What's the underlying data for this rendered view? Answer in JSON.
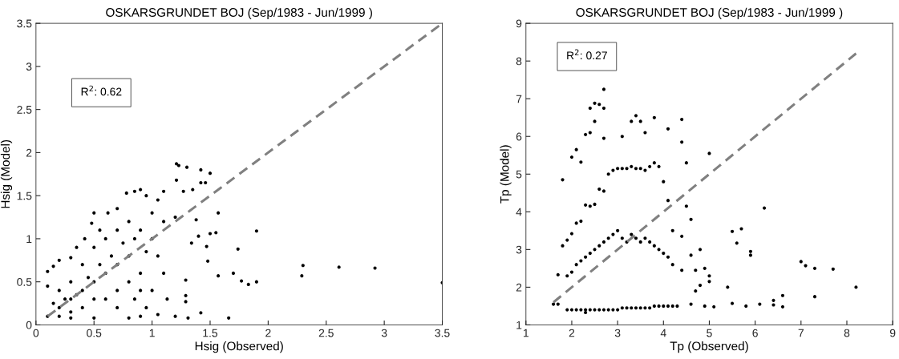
{
  "chart_data": [
    {
      "type": "scatter",
      "title": "OSKARSGRUNDET BOJ (Sep/1983 - Jun/1999 )",
      "xlabel": "Hsig (Observed)",
      "ylabel": "Hsig (Model)",
      "annotations": [
        "R$^{2}$: 0.62"
      ],
      "xlim": [
        0,
        3.5
      ],
      "ylim": [
        0,
        3.5
      ],
      "xticks": [
        0,
        0.5,
        1,
        1.5,
        2,
        2.5,
        3,
        3.5
      ],
      "yticks": [
        0,
        0.5,
        1,
        1.5,
        2,
        2.5,
        3,
        3.5
      ],
      "grid": false,
      "legend": false,
      "series": [
        {
          "marker": "circle",
          "color": "#000000",
          "x": [
            3.5,
            2.92,
            2.61,
            2.3,
            2.29,
            1.9,
            1.9,
            1.83,
            1.77,
            1.7,
            1.74,
            1.66,
            1.57,
            1.57,
            1.55,
            1.5,
            1.48,
            1.42,
            1.38,
            1.5,
            1.42,
            1.3,
            1.21,
            1.23,
            1.21,
            1.42,
            1.46,
            1.27,
            1.35,
            1.29,
            1.29,
            1.29,
            1.31,
            1.13,
            1.34,
            1.4,
            1.47,
            0.1,
            0.1,
            0.1,
            0.15,
            0.2,
            0.3,
            0.35,
            0.42,
            0.48,
            0.5,
            0.55,
            0.62,
            0.7,
            0.78,
            0.85,
            0.9,
            0.95,
            1.05,
            1.1,
            1.0,
            1.1,
            1.2,
            1.0,
            1.05,
            1.1,
            1.0,
            0.95,
            0.9,
            0.8,
            0.5,
            0.3,
            0.2,
            1.2,
            1.05,
            0.2,
            0.3,
            0.4,
            0.5,
            0.6,
            0.7,
            0.8,
            0.3,
            0.4,
            0.5,
            0.6,
            0.7,
            0.8,
            0.9,
            0.5,
            0.6,
            0.7,
            0.8,
            0.9,
            0.2,
            0.3,
            0.4,
            0.7,
            0.85,
            0.65,
            0.75,
            0.55,
            0.45,
            0.35,
            0.25,
            0.15,
            0.85,
            0.95,
            0.9
          ],
          "values": [
            0.49,
            0.66,
            0.67,
            0.69,
            0.57,
            1.09,
            0.5,
            0.47,
            0.51,
            0.6,
            0.88,
            0.08,
            0.57,
            1.3,
            1.07,
            1.06,
            0.74,
            0.14,
            1.22,
            1.76,
            1.8,
            1.83,
            1.87,
            1.85,
            1.68,
            1.65,
            1.65,
            1.55,
            1.57,
            0.52,
            0.34,
            0.27,
            0.08,
            0.3,
            0.95,
            1.03,
            0.91,
            0.1,
            0.45,
            0.62,
            0.68,
            0.75,
            0.78,
            0.9,
            1.0,
            1.18,
            1.3,
            1.1,
            1.3,
            1.35,
            1.53,
            1.55,
            1.57,
            1.5,
            1.45,
            1.55,
            1.3,
            1.2,
            1.25,
            1.0,
            0.8,
            0.6,
            0.4,
            0.2,
            0.1,
            0.08,
            0.08,
            0.08,
            0.1,
            0.1,
            0.12,
            0.2,
            0.3,
            0.4,
            0.5,
            0.6,
            0.7,
            0.8,
            0.5,
            0.7,
            0.9,
            1.0,
            1.1,
            1.2,
            1.1,
            0.3,
            0.3,
            0.4,
            0.5,
            0.6,
            0.4,
            0.15,
            0.2,
            0.2,
            0.3,
            0.8,
            0.95,
            0.7,
            0.55,
            0.35,
            0.3,
            0.25,
            1.0,
            0.85,
            0.4
          ]
        },
        {
          "type": "line",
          "marker": "none",
          "color": "#808080",
          "line_style": "dashed",
          "x": [
            0.1,
            3.5
          ],
          "values": [
            0.1,
            3.5
          ]
        }
      ]
    },
    {
      "type": "scatter",
      "title": "OSKARSGRUNDET BOJ (Sep/1983 - Jun/1999 )",
      "xlabel": "Tp (Observed)",
      "ylabel": "Tp (Model)",
      "annotations": [
        "R$^{2}$: 0.27"
      ],
      "xlim": [
        1,
        9
      ],
      "ylim": [
        1,
        9
      ],
      "xticks": [
        1,
        2,
        3,
        4,
        5,
        6,
        7,
        8,
        9
      ],
      "yticks": [
        1,
        2,
        3,
        4,
        5,
        6,
        7,
        8,
        9
      ],
      "grid": false,
      "legend": false,
      "series": [
        {
          "marker": "circle",
          "color": "#000000",
          "x": [
            1.9,
            2.0,
            2.1,
            2.2,
            2.3,
            2.4,
            2.5,
            2.6,
            2.7,
            2.8,
            2.9,
            3.0,
            3.1,
            3.2,
            3.3,
            3.4,
            3.5,
            3.6,
            3.7,
            3.8,
            3.9,
            4.0,
            4.1,
            4.2,
            1.9,
            2.0,
            2.1,
            2.2,
            2.3,
            2.4,
            2.5,
            2.6,
            2.7,
            2.8,
            2.9,
            3.0,
            3.1,
            3.2,
            3.3,
            3.4,
            3.5,
            3.6,
            3.7,
            3.8,
            3.9,
            4.0,
            4.1,
            4.2,
            1.9,
            2.0,
            2.1,
            2.2,
            2.3,
            2.4,
            2.5,
            2.6,
            2.7,
            2.8,
            2.9,
            3.0,
            3.1,
            3.2,
            3.3,
            3.4,
            3.5,
            3.6,
            3.7,
            3.8,
            3.9,
            4.0,
            4.1,
            4.2,
            1.6,
            1.7,
            1.8,
            1.8,
            1.7,
            2.0,
            2.1,
            2.2,
            2.3,
            2.4,
            2.4,
            2.5,
            2.6,
            2.7,
            2.7,
            2.5,
            2.7,
            3.1,
            3.3,
            3.4,
            3.5,
            3.6,
            3.8,
            4.1,
            4.4,
            4.4,
            4.5,
            4.5,
            4.6,
            4.6,
            4.8,
            4.7,
            4.7,
            4.8,
            4.9,
            5.0,
            5.0,
            5.0,
            5.1,
            5.4,
            5.5,
            5.6,
            5.7,
            5.9,
            5.9,
            6.2,
            5.5,
            5.8,
            6.1,
            6.4,
            6.4,
            6.6,
            6.6,
            7.0,
            7.1,
            7.3,
            7.3,
            7.7,
            8.2,
            4.3,
            4.6,
            4.9,
            2.3,
            4.4,
            4.4
          ],
          "values": [
            3.25,
            3.42,
            3.7,
            3.75,
            4.18,
            4.15,
            4.2,
            4.6,
            4.55,
            5.0,
            5.1,
            5.15,
            5.15,
            5.15,
            5.2,
            5.15,
            5.15,
            5.1,
            5.2,
            5.3,
            5.2,
            4.8,
            4.3,
            3.5,
            2.3,
            2.4,
            2.6,
            2.7,
            2.8,
            2.9,
            3.0,
            3.1,
            3.2,
            3.3,
            3.4,
            3.5,
            3.3,
            3.2,
            3.4,
            3.3,
            3.2,
            3.3,
            3.2,
            3.1,
            3.0,
            2.9,
            2.8,
            2.6,
            1.4,
            1.4,
            1.4,
            1.4,
            1.4,
            1.4,
            1.4,
            1.4,
            1.4,
            1.4,
            1.4,
            1.4,
            1.45,
            1.45,
            1.45,
            1.45,
            1.45,
            1.45,
            1.45,
            1.5,
            1.5,
            1.5,
            1.5,
            1.5,
            1.55,
            2.33,
            4.85,
            3.1,
            1.55,
            5.45,
            5.65,
            5.32,
            6.05,
            6.1,
            6.75,
            6.88,
            6.85,
            7.25,
            6.75,
            6.4,
            5.95,
            6.0,
            6.4,
            6.55,
            6.4,
            6.1,
            6.5,
            6.2,
            6.45,
            5.85,
            5.3,
            4.15,
            3.8,
            2.85,
            3.0,
            2.45,
            1.9,
            2.05,
            2.5,
            2.3,
            5.55,
            2.15,
            1.48,
            2.0,
            3.48,
            3.17,
            3.55,
            2.95,
            2.85,
            4.1,
            1.57,
            1.5,
            1.55,
            1.65,
            1.53,
            1.78,
            1.48,
            2.68,
            2.57,
            2.5,
            1.75,
            2.48,
            2.0,
            1.5,
            1.55,
            1.5,
            1.33,
            3.35,
            2.45
          ]
        },
        {
          "type": "line",
          "marker": "none",
          "color": "#808080",
          "line_style": "dashed",
          "x": [
            1.6,
            8.2
          ],
          "values": [
            1.6,
            8.2
          ]
        }
      ]
    }
  ]
}
